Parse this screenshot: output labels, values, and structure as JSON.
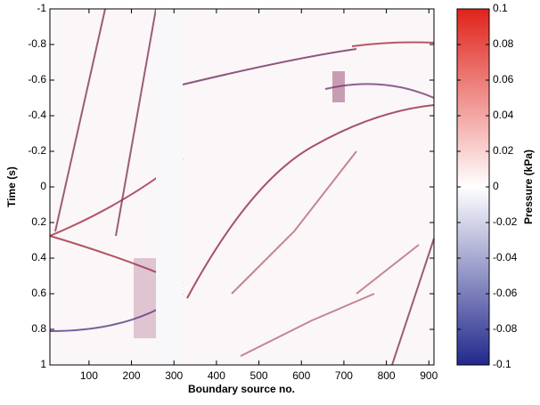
{
  "chart_data": {
    "type": "heatmap",
    "xlabel": "Boundary source no.",
    "ylabel": "Time (s)",
    "xlim": [
      8,
      912
    ],
    "xticks": [
      100,
      200,
      300,
      400,
      500,
      600,
      700,
      800,
      900
    ],
    "ylim": [
      -1,
      1
    ],
    "y_inverted": true,
    "yticks": [
      -1,
      -0.8,
      -0.6,
      -0.4,
      -0.2,
      0,
      0.2,
      0.4,
      0.6,
      0.8,
      1
    ],
    "colorbar": {
      "label": "Pressure (kPa)",
      "lim": [
        -0.1,
        0.1
      ],
      "ticks": [
        -0.1,
        -0.08,
        -0.06,
        -0.04,
        -0.02,
        0,
        0.02,
        0.04,
        0.06,
        0.08,
        0.1
      ],
      "colormap": [
        "#22288c",
        "#ffffff",
        "#e0231b"
      ]
    }
  }
}
